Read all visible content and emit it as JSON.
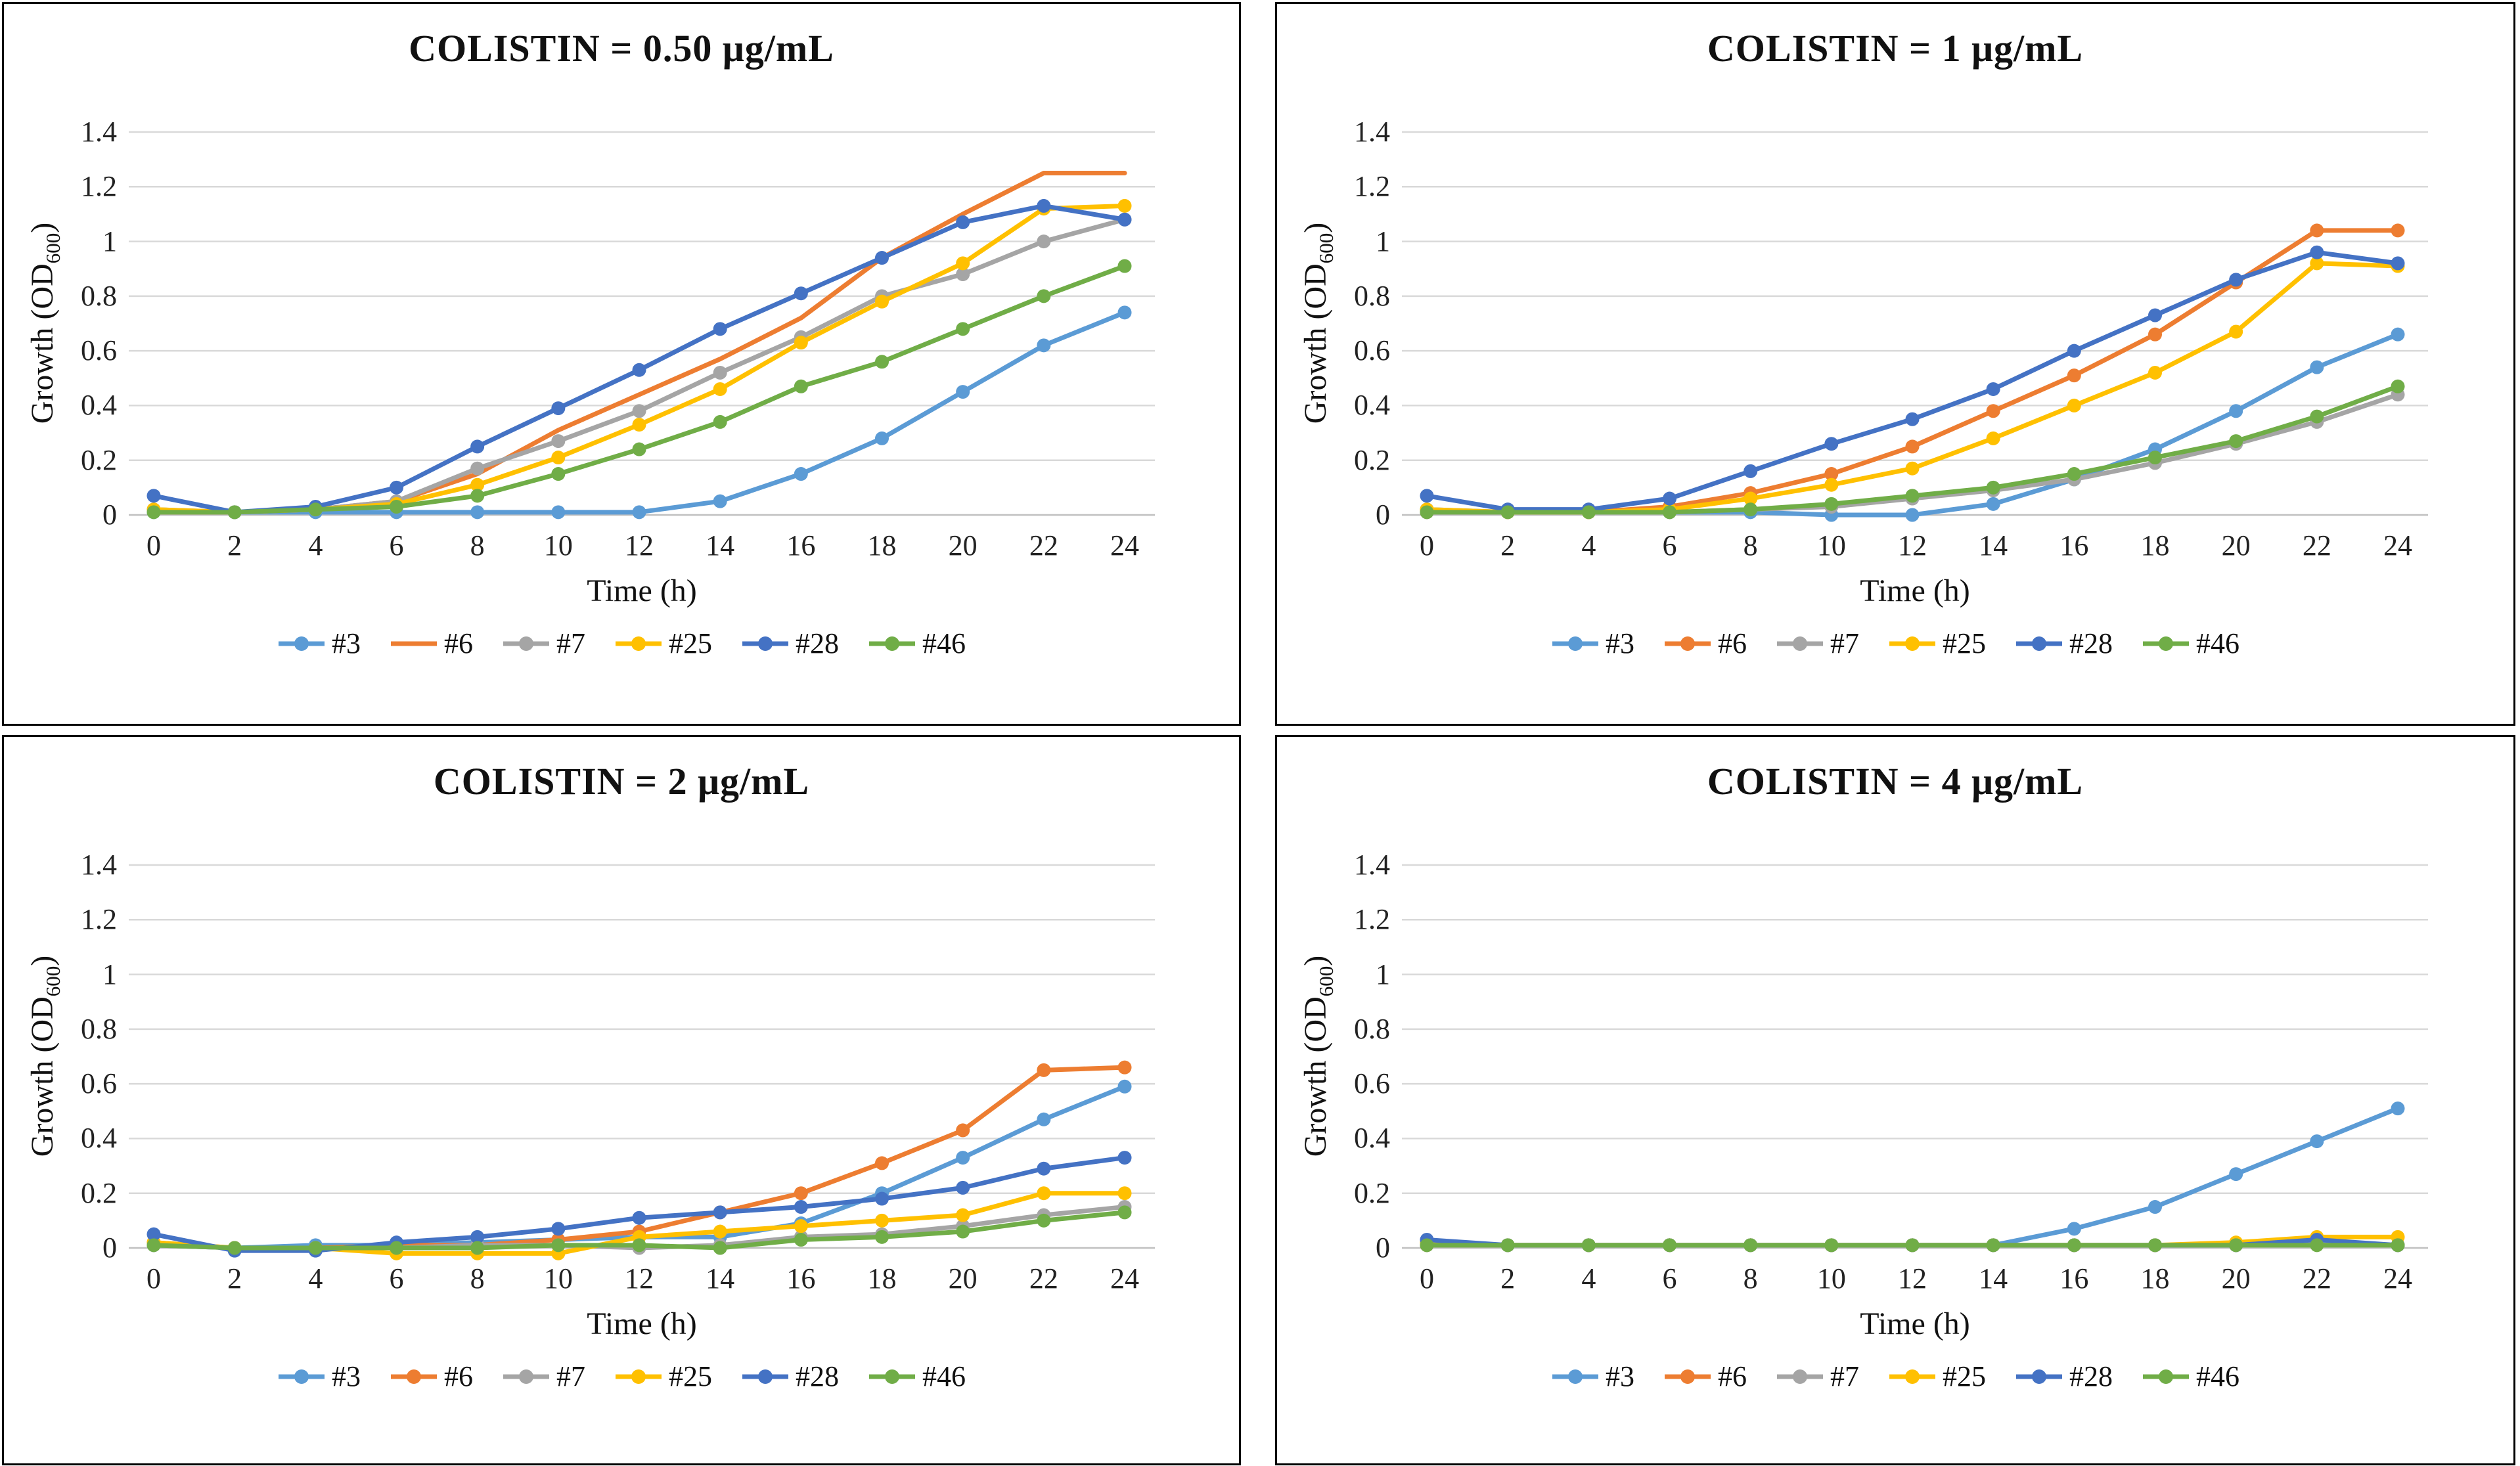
{
  "axes": {
    "x_label": "Time (h)",
    "y_label_prefix": "Growth (OD",
    "y_label_sub": "600",
    "y_label_suffix": ")",
    "x_ticks": [
      "0",
      "2",
      "4",
      "6",
      "8",
      "10",
      "12",
      "14",
      "16",
      "18",
      "20",
      "22",
      "24"
    ],
    "y_ticks": [
      "0",
      "0.2",
      "0.4",
      "0.6",
      "0.8",
      "1",
      "1.2",
      "1.4"
    ],
    "x_range": [
      0,
      24
    ],
    "y_range": [
      0,
      1.4
    ],
    "grid_color": "#D9D9D9",
    "zero_line_color": "#C0C0C0"
  },
  "legend": {
    "labels": [
      "#3",
      "#6",
      "#7",
      "#25",
      "#28",
      "#46"
    ]
  },
  "chart_data": [
    {
      "type": "line",
      "title": "COLISTIN = 0.50 μg/mL",
      "xlabel": "Time (h)",
      "ylabel": "Growth (OD600)",
      "x": [
        0,
        2,
        4,
        6,
        8,
        10,
        12,
        14,
        16,
        18,
        20,
        22,
        24
      ],
      "ylim": [
        0,
        1.4
      ],
      "series": [
        {
          "name": "#3",
          "color": "#5B9BD5",
          "markers": true,
          "values": [
            0.01,
            0.01,
            0.01,
            0.01,
            0.01,
            0.01,
            0.01,
            0.05,
            0.15,
            0.28,
            0.45,
            0.62,
            0.74
          ]
        },
        {
          "name": "#6",
          "color": "#ED7D31",
          "markers": false,
          "values": [
            0.01,
            0.01,
            0.02,
            0.05,
            0.15,
            0.31,
            0.44,
            0.57,
            0.72,
            0.94,
            1.1,
            1.25,
            1.25
          ]
        },
        {
          "name": "#7",
          "color": "#A5A5A5",
          "markers": true,
          "values": [
            0.02,
            0.01,
            0.02,
            0.05,
            0.17,
            0.27,
            0.38,
            0.52,
            0.65,
            0.8,
            0.88,
            1.0,
            1.08
          ]
        },
        {
          "name": "#25",
          "color": "#FFC000",
          "markers": true,
          "values": [
            0.02,
            0.01,
            0.02,
            0.04,
            0.11,
            0.21,
            0.33,
            0.46,
            0.63,
            0.78,
            0.92,
            1.12,
            1.13
          ]
        },
        {
          "name": "#28",
          "color": "#4472C4",
          "markers": true,
          "values": [
            0.07,
            0.01,
            0.03,
            0.1,
            0.25,
            0.39,
            0.53,
            0.68,
            0.81,
            0.94,
            1.07,
            1.13,
            1.08
          ]
        },
        {
          "name": "#46",
          "color": "#70AD47",
          "markers": true,
          "values": [
            0.01,
            0.01,
            0.02,
            0.03,
            0.07,
            0.15,
            0.24,
            0.34,
            0.47,
            0.56,
            0.68,
            0.8,
            0.91
          ]
        }
      ]
    },
    {
      "type": "line",
      "title": "COLISTIN = 1 μg/mL",
      "xlabel": "Time (h)",
      "ylabel": "Growth (OD600)",
      "x": [
        0,
        2,
        4,
        6,
        8,
        10,
        12,
        14,
        16,
        18,
        20,
        22,
        24
      ],
      "ylim": [
        0,
        1.4
      ],
      "series": [
        {
          "name": "#3",
          "color": "#5B9BD5",
          "markers": true,
          "values": [
            0.02,
            0.01,
            0.01,
            0.01,
            0.01,
            0.0,
            0.0,
            0.04,
            0.13,
            0.24,
            0.38,
            0.54,
            0.66
          ]
        },
        {
          "name": "#6",
          "color": "#ED7D31",
          "markers": true,
          "values": [
            0.01,
            0.01,
            0.01,
            0.03,
            0.08,
            0.15,
            0.25,
            0.38,
            0.51,
            0.66,
            0.85,
            1.04,
            1.04
          ]
        },
        {
          "name": "#7",
          "color": "#A5A5A5",
          "markers": true,
          "values": [
            0.01,
            0.01,
            0.01,
            0.01,
            0.02,
            0.03,
            0.06,
            0.09,
            0.13,
            0.19,
            0.26,
            0.34,
            0.44
          ]
        },
        {
          "name": "#25",
          "color": "#FFC000",
          "markers": true,
          "values": [
            0.02,
            0.01,
            0.01,
            0.02,
            0.06,
            0.11,
            0.17,
            0.28,
            0.4,
            0.52,
            0.67,
            0.92,
            0.91
          ]
        },
        {
          "name": "#28",
          "color": "#4472C4",
          "markers": true,
          "values": [
            0.07,
            0.02,
            0.02,
            0.06,
            0.16,
            0.26,
            0.35,
            0.46,
            0.6,
            0.73,
            0.86,
            0.96,
            0.92
          ]
        },
        {
          "name": "#46",
          "color": "#70AD47",
          "markers": true,
          "values": [
            0.01,
            0.01,
            0.01,
            0.01,
            0.02,
            0.04,
            0.07,
            0.1,
            0.15,
            0.21,
            0.27,
            0.36,
            0.47
          ]
        }
      ]
    },
    {
      "type": "line",
      "title": "COLISTIN = 2 μg/mL",
      "xlabel": "Time (h)",
      "ylabel": "Growth (OD600)",
      "x": [
        0,
        2,
        4,
        6,
        8,
        10,
        12,
        14,
        16,
        18,
        20,
        22,
        24
      ],
      "ylim": [
        0,
        1.4
      ],
      "series": [
        {
          "name": "#3",
          "color": "#5B9BD5",
          "markers": true,
          "values": [
            0.01,
            0.0,
            0.01,
            0.01,
            0.02,
            0.03,
            0.04,
            0.04,
            0.09,
            0.2,
            0.33,
            0.47,
            0.59
          ]
        },
        {
          "name": "#6",
          "color": "#ED7D31",
          "markers": true,
          "values": [
            0.02,
            0.0,
            0.0,
            0.01,
            0.01,
            0.03,
            0.06,
            0.13,
            0.2,
            0.31,
            0.43,
            0.65,
            0.66
          ]
        },
        {
          "name": "#7",
          "color": "#A5A5A5",
          "markers": true,
          "values": [
            0.01,
            0.0,
            0.0,
            0.0,
            0.01,
            0.01,
            0.0,
            0.01,
            0.04,
            0.05,
            0.08,
            0.12,
            0.15
          ]
        },
        {
          "name": "#25",
          "color": "#FFC000",
          "markers": true,
          "values": [
            0.02,
            0.0,
            0.0,
            -0.02,
            -0.02,
            -0.02,
            0.04,
            0.06,
            0.08,
            0.1,
            0.12,
            0.2,
            0.2
          ]
        },
        {
          "name": "#28",
          "color": "#4472C4",
          "markers": true,
          "values": [
            0.05,
            -0.01,
            -0.01,
            0.02,
            0.04,
            0.07,
            0.11,
            0.13,
            0.15,
            0.18,
            0.22,
            0.29,
            0.33
          ]
        },
        {
          "name": "#46",
          "color": "#70AD47",
          "markers": true,
          "values": [
            0.01,
            0.0,
            0.0,
            0.0,
            0.0,
            0.01,
            0.01,
            0.0,
            0.03,
            0.04,
            0.06,
            0.1,
            0.13
          ]
        }
      ]
    },
    {
      "type": "line",
      "title": "COLISTIN = 4 μg/mL",
      "xlabel": "Time (h)",
      "ylabel": "Growth (OD600)",
      "x": [
        0,
        2,
        4,
        6,
        8,
        10,
        12,
        14,
        16,
        18,
        20,
        22,
        24
      ],
      "ylim": [
        0,
        1.4
      ],
      "series": [
        {
          "name": "#3",
          "color": "#5B9BD5",
          "markers": true,
          "values": [
            0.02,
            0.01,
            0.01,
            0.01,
            0.01,
            0.01,
            0.01,
            0.01,
            0.07,
            0.15,
            0.27,
            0.39,
            0.51
          ]
        },
        {
          "name": "#6",
          "color": "#ED7D31",
          "markers": true,
          "values": [
            0.01,
            0.01,
            0.01,
            0.01,
            0.01,
            0.01,
            0.01,
            0.01,
            0.01,
            0.01,
            0.01,
            0.02,
            0.01
          ]
        },
        {
          "name": "#7",
          "color": "#A5A5A5",
          "markers": true,
          "values": [
            0.01,
            0.01,
            0.01,
            0.01,
            0.01,
            0.01,
            0.01,
            0.01,
            0.01,
            0.01,
            0.01,
            0.02,
            0.01
          ]
        },
        {
          "name": "#25",
          "color": "#FFC000",
          "markers": true,
          "values": [
            0.02,
            0.01,
            0.01,
            0.01,
            0.01,
            0.01,
            0.01,
            0.01,
            0.01,
            0.01,
            0.02,
            0.04,
            0.04
          ]
        },
        {
          "name": "#28",
          "color": "#4472C4",
          "markers": true,
          "values": [
            0.03,
            0.01,
            0.01,
            0.01,
            0.01,
            0.01,
            0.01,
            0.01,
            0.01,
            0.01,
            0.01,
            0.03,
            0.01
          ]
        },
        {
          "name": "#46",
          "color": "#70AD47",
          "markers": true,
          "values": [
            0.01,
            0.01,
            0.01,
            0.01,
            0.01,
            0.01,
            0.01,
            0.01,
            0.01,
            0.01,
            0.01,
            0.01,
            0.01
          ]
        }
      ]
    }
  ]
}
